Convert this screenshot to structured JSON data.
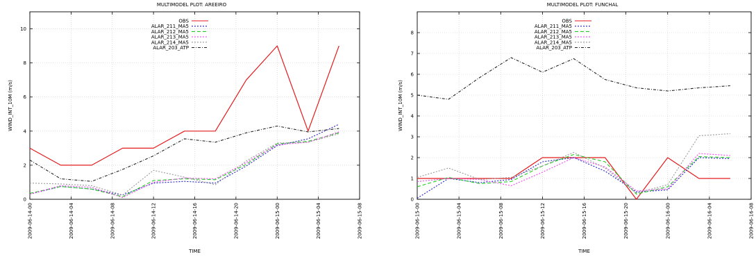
{
  "chart_data": [
    {
      "type": "line",
      "title": "MULTIMODEL PLOT: AREEIRO",
      "xlabel": "TIME",
      "ylabel": "WIND_INT_10M (m/s)",
      "ylim": [
        0,
        11
      ],
      "yticks": [
        0,
        2,
        4,
        6,
        8,
        10
      ],
      "x_tick_labels": [
        "2009-06-14-00",
        "2009-06-14-04",
        "2009-06-14-08",
        "2009-06-14-12",
        "2009-06-14-16",
        "2009-06-14-20",
        "2009-06-15-00",
        "2009-06-15-04",
        "2009-06-15-08"
      ],
      "x_hours": [
        0,
        3,
        6,
        9,
        12,
        15,
        18,
        21,
        24,
        27,
        30
      ],
      "xlim_hours": [
        0,
        32
      ],
      "grid": true,
      "legend_position": "top-left",
      "series": [
        {
          "name": "OBS",
          "color": "#e41a1c",
          "dash": "solid",
          "values": [
            3,
            2,
            2,
            3,
            3,
            4,
            4,
            7,
            9,
            4,
            9
          ]
        },
        {
          "name": "ALAR_211_MA5",
          "color": "#2020c0",
          "dash": "dots",
          "values": [
            0.3,
            0.75,
            0.6,
            0.25,
            0.95,
            1.05,
            0.95,
            1.95,
            3.15,
            3.55,
            4.4
          ]
        },
        {
          "name": "ALAR_212_MA5",
          "color": "#22cc22",
          "dash": "dash",
          "values": [
            0.35,
            0.75,
            0.6,
            0.15,
            1.1,
            1.2,
            1.15,
            2.05,
            3.25,
            3.4,
            3.9
          ]
        },
        {
          "name": "ALAR_213_MA5",
          "color": "#ee44ee",
          "dash": "dots",
          "values": [
            0.3,
            0.8,
            0.7,
            0.1,
            1.0,
            1.25,
            1.2,
            2.15,
            3.2,
            3.35,
            3.95
          ]
        },
        {
          "name": "ALAR_214_MA5",
          "color": "#999999",
          "dash": "dots",
          "values": [
            0.95,
            0.9,
            0.8,
            0.25,
            1.7,
            1.3,
            0.85,
            2.25,
            3.3,
            3.35,
            3.85
          ]
        },
        {
          "name": "ALAR_203_ATP",
          "color": "#222222",
          "dash": "dashdot",
          "values": [
            2.3,
            1.2,
            1.05,
            1.75,
            2.55,
            3.55,
            3.35,
            3.9,
            4.3,
            3.95,
            4.15
          ]
        }
      ]
    },
    {
      "type": "line",
      "title": "MULTIMODEL PLOT: FUNCHAL",
      "xlabel": "TIME",
      "ylabel": "WIND_INT_10M (m/s)",
      "ylim": [
        0,
        9
      ],
      "yticks": [
        0,
        1,
        2,
        3,
        4,
        5,
        6,
        7,
        8
      ],
      "x_tick_labels": [
        "2009-06-15-00",
        "2009-06-15-04",
        "2009-06-15-08",
        "2009-06-15-12",
        "2009-06-15-16",
        "2009-06-15-20",
        "2009-06-16-00",
        "2009-06-16-04",
        "2009-06-16-08"
      ],
      "x_hours": [
        0,
        3,
        6,
        9,
        12,
        15,
        18,
        21,
        24,
        27,
        30
      ],
      "xlim_hours": [
        0,
        32
      ],
      "grid": true,
      "legend_position": "top-left",
      "series": [
        {
          "name": "OBS",
          "color": "#e41a1c",
          "dash": "solid",
          "values": [
            1,
            1,
            1,
            1,
            2,
            2,
            2,
            0,
            2,
            1,
            1
          ]
        },
        {
          "name": "ALAR_211_MA5",
          "color": "#2020c0",
          "dash": "dots",
          "values": [
            0.05,
            1.0,
            0.8,
            0.95,
            1.8,
            2.0,
            1.35,
            0.35,
            0.45,
            2.0,
            1.95
          ]
        },
        {
          "name": "ALAR_212_MA5",
          "color": "#22cc22",
          "dash": "dash",
          "values": [
            0.6,
            1.05,
            0.75,
            0.85,
            1.6,
            2.15,
            1.8,
            0.25,
            0.6,
            2.05,
            2.0
          ]
        },
        {
          "name": "ALAR_213_MA5",
          "color": "#ee44ee",
          "dash": "dots",
          "values": [
            0.85,
            1.0,
            0.95,
            0.65,
            1.3,
            2.0,
            1.55,
            0.4,
            0.5,
            2.2,
            2.1
          ]
        },
        {
          "name": "ALAR_214_MA5",
          "color": "#999999",
          "dash": "dots",
          "values": [
            1.05,
            1.5,
            0.95,
            1.05,
            1.6,
            2.25,
            1.5,
            0.3,
            0.7,
            3.05,
            3.15
          ]
        },
        {
          "name": "ALAR_203_ATP",
          "color": "#222222",
          "dash": "dashdot",
          "values": [
            5.0,
            4.8,
            5.85,
            6.8,
            6.1,
            6.75,
            5.75,
            5.35,
            5.2,
            5.35,
            5.45
          ]
        }
      ]
    }
  ]
}
